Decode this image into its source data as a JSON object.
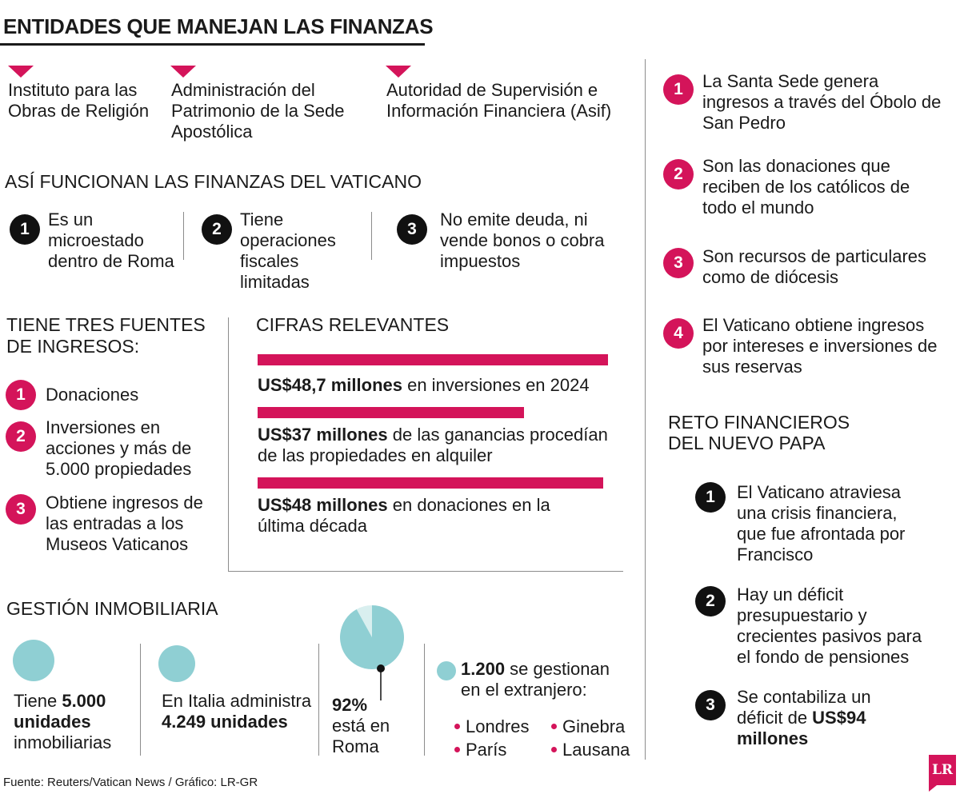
{
  "title": "ENTIDADES QUE MANEJAN LAS FINANZAS",
  "entities": [
    "Instituto para las Obras de Religión",
    "Administración del Patrimonio de la Sede Apostólica",
    "Autoridad de Supervisión e Información Financiera (Asif)"
  ],
  "funcionan": {
    "heading": "ASÍ FUNCIONAN LAS FINANZAS DEL VATICANO",
    "items": [
      {
        "num": "1",
        "text": "Es un microestado dentro de Roma"
      },
      {
        "num": "2",
        "text": "Tiene operaciones fiscales limitadas"
      },
      {
        "num": "3",
        "text": "No emite deuda, ni vende bonos o cobra impuestos"
      }
    ]
  },
  "fuentes": {
    "heading_line1": "TIENE TRES FUENTES",
    "heading_line2": "DE INGRESOS:",
    "items": [
      {
        "num": "1",
        "text": "Donaciones"
      },
      {
        "num": "2",
        "text": "Inversiones en acciones y más de 5.000 propiedades"
      },
      {
        "num": "3",
        "text": "Obtiene ingresos de las entradas a los Museos Vaticanos"
      }
    ]
  },
  "cifras": {
    "heading": "CIFRAS RELEVANTES",
    "items": [
      {
        "bold": "US$48,7 millones",
        "rest": " en inversiones en 2024",
        "value": 48.7
      },
      {
        "bold": "US$37 millones",
        "rest": " de las ganancias procedían de las propiedades en alquiler",
        "value": 37
      },
      {
        "bold": "US$48 millones",
        "rest": " en donaciones en la última década",
        "value": 48
      }
    ]
  },
  "gestion": {
    "heading": "GESTIÓN INMOBILIARIA",
    "tiene_pre": "Tiene ",
    "tiene_bold": "5.000 unidades",
    "tiene_post": " inmobiliarias",
    "italia_pre": "En Italia administra ",
    "italia_bold": "4.249 unidades",
    "roma_pct": "92%",
    "roma_text": "está en Roma",
    "roma_share": 0.92,
    "extranjero_bold": "1.200",
    "extranjero_rest": " se gestionan en el extranjero:",
    "cities": [
      "Londres",
      "Ginebra",
      "París",
      "Lausana"
    ]
  },
  "ingresos_right": [
    {
      "num": "1",
      "text": "La Santa Sede genera ingresos a través del Óbolo de San Pedro"
    },
    {
      "num": "2",
      "text": "Son las donaciones que reciben de los católicos de todo el mundo"
    },
    {
      "num": "3",
      "text": "Son recursos de particulares como de diócesis"
    },
    {
      "num": "4",
      "text": "El Vaticano obtiene ingresos por intereses e inversiones de sus reservas"
    }
  ],
  "reto": {
    "heading_line1": "RETO FINANCIEROS",
    "heading_line2": "DEL NUEVO PAPA",
    "items": [
      {
        "num": "1",
        "text": "El Vaticano atraviesa una crisis financiera, que fue afrontada por Francisco"
      },
      {
        "num": "2",
        "text": "Hay un déficit presupuestario y crecientes pasivos para el fondo de pensiones"
      },
      {
        "num": "3",
        "text_pre": "Se contabiliza un déficit de ",
        "text_bold": "US$94 millones"
      }
    ]
  },
  "source": "Fuente: Reuters/Vatican News / Gráfico: LR-GR",
  "logo": "LR",
  "colors": {
    "accent": "#d4145a",
    "teal": "#8fcfd3"
  }
}
